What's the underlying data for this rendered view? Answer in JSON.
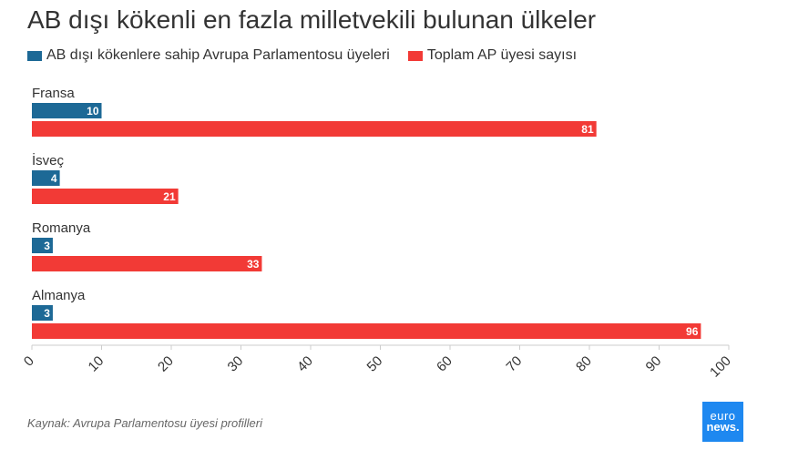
{
  "header": {
    "title": "AB dışı kökenli en fazla milletvekili bulunan ülkeler"
  },
  "legend": {
    "items": [
      {
        "label": "AB dışı kökenlere sahip Avrupa Parlamentosu üyeleri",
        "color": "#1d6996"
      },
      {
        "label": "Toplam AP üyesi sayısı",
        "color": "#f23a36"
      }
    ]
  },
  "chart_data": {
    "type": "bar",
    "orientation": "horizontal",
    "title": "AB dışı kökenli en fazla milletvekili bulunan ülkeler",
    "categories": [
      "Fransa",
      "İsveç",
      "Romanya",
      "Almanya"
    ],
    "series": [
      {
        "name": "AB dışı kökenlere sahip Avrupa Parlamentosu üyeleri",
        "values": [
          10,
          4,
          3,
          3
        ],
        "color": "#1d6996"
      },
      {
        "name": "Toplam AP üyesi sayısı",
        "values": [
          81,
          21,
          33,
          96
        ],
        "color": "#f23a36"
      }
    ],
    "xlim": [
      0,
      100
    ],
    "xticks": [
      0,
      10,
      20,
      30,
      40,
      50,
      60,
      70,
      80,
      90,
      100
    ],
    "grid": false,
    "legend_position": "top-left"
  },
  "footer": {
    "source": "Kaynak: Avrupa Parlamentosu üyesi profilleri",
    "logo_line1": "euro",
    "logo_line2": "news."
  }
}
